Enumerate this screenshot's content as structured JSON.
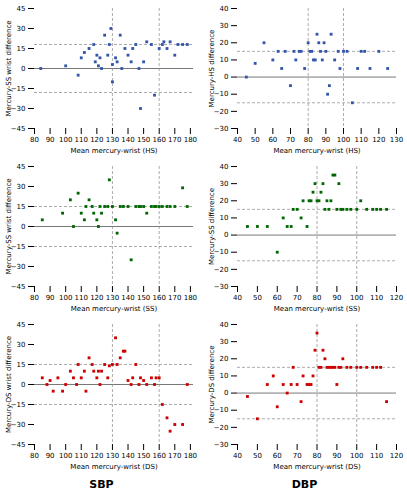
{
  "chart_data": [
    {
      "type": "scatter",
      "marker": "square",
      "color": "#3355aa",
      "xlabel": "Mean mercury-wrist (HS)",
      "ylabel": "Mercury-SS wrist difference",
      "x": [
        84,
        100,
        108,
        110,
        112,
        115,
        118,
        119,
        120,
        121,
        122,
        123,
        125,
        127,
        128,
        129,
        130,
        130,
        132,
        133,
        135,
        136,
        138,
        140,
        142,
        143,
        145,
        147,
        148,
        150,
        152,
        155,
        157,
        160,
        162,
        163,
        165,
        167,
        170,
        172,
        175,
        178
      ],
      "values": [
        0,
        2,
        -5,
        8,
        12,
        15,
        18,
        5,
        10,
        2,
        8,
        0,
        25,
        10,
        18,
        30,
        3,
        -10,
        8,
        5,
        25,
        0,
        15,
        10,
        5,
        15,
        18,
        0,
        -30,
        5,
        20,
        18,
        -20,
        15,
        18,
        20,
        15,
        20,
        10,
        18,
        18,
        18
      ],
      "mean_line": 0,
      "upper_loa": 18,
      "lower_loa": -18,
      "upper_vline": 130,
      "lower_vline": 160,
      "xlim": [
        80,
        182
      ],
      "ylim": [
        -45,
        45
      ],
      "xticks": [
        80,
        90,
        100,
        110,
        120,
        130,
        140,
        150,
        160,
        170,
        180
      ],
      "yticks": [
        -45,
        -30,
        -15,
        0,
        15,
        30,
        45
      ]
    },
    {
      "type": "scatter",
      "marker": "square",
      "color": "#3355aa",
      "xlabel": "Mean mercury-wrist (HS)",
      "ylabel": "Mercury-HS difference",
      "x": [
        45,
        50,
        55,
        60,
        63,
        65,
        67,
        70,
        72,
        73,
        75,
        76,
        78,
        80,
        81,
        82,
        83,
        84,
        85,
        86,
        87,
        88,
        89,
        90,
        91,
        92,
        93,
        95,
        97,
        98,
        100,
        102,
        105,
        108,
        110,
        112,
        115,
        120,
        125
      ],
      "values": [
        0,
        8,
        20,
        10,
        15,
        5,
        15,
        -5,
        15,
        10,
        15,
        15,
        5,
        20,
        15,
        15,
        10,
        10,
        25,
        20,
        15,
        10,
        20,
        15,
        -10,
        -5,
        25,
        10,
        15,
        5,
        15,
        15,
        -15,
        5,
        15,
        15,
        5,
        15,
        5
      ],
      "mean_line": 0,
      "upper_loa": 15,
      "lower_loa": -15,
      "upper_vline": 80,
      "lower_vline": 100,
      "xlim": [
        40,
        130
      ],
      "ylim": [
        -30,
        40
      ],
      "xticks": [
        40,
        50,
        60,
        70,
        80,
        90,
        100,
        110,
        120,
        130
      ],
      "yticks": [
        -30,
        -20,
        -10,
        0,
        10,
        20,
        30,
        40
      ]
    },
    {
      "type": "scatter",
      "marker": "square",
      "color": "#006600",
      "xlabel": "Mean mercury-wrist (SS)",
      "ylabel": "Mercury-SS wrist difference",
      "x": [
        85,
        98,
        103,
        105,
        108,
        110,
        112,
        113,
        115,
        117,
        118,
        120,
        121,
        122,
        123,
        125,
        127,
        128,
        130,
        132,
        133,
        135,
        137,
        140,
        142,
        145,
        147,
        148,
        150,
        152,
        155,
        157,
        158,
        160,
        162,
        165,
        167,
        170,
        175,
        178
      ],
      "values": [
        5,
        10,
        20,
        0,
        25,
        10,
        5,
        15,
        20,
        15,
        10,
        5,
        0,
        15,
        10,
        15,
        15,
        35,
        15,
        5,
        -5,
        15,
        15,
        15,
        -25,
        15,
        15,
        15,
        15,
        10,
        15,
        15,
        15,
        15,
        15,
        15,
        15,
        15,
        29,
        15
      ],
      "mean_line": 0,
      "upper_loa": 15,
      "lower_loa": -15,
      "upper_vline": 130,
      "lower_vline": 160,
      "xlim": [
        80,
        182
      ],
      "ylim": [
        -45,
        45
      ],
      "xticks": [
        80,
        90,
        100,
        110,
        120,
        130,
        140,
        150,
        160,
        170,
        180
      ],
      "yticks": [
        -45,
        -30,
        -15,
        0,
        15,
        30,
        45
      ]
    },
    {
      "type": "scatter",
      "marker": "square",
      "color": "#006600",
      "xlabel": "Mean mercury-wrist (SS)",
      "ylabel": "Mercury-SS difference",
      "x": [
        45,
        50,
        55,
        60,
        63,
        65,
        67,
        68,
        70,
        72,
        73,
        75,
        76,
        77,
        78,
        79,
        80,
        81,
        82,
        83,
        84,
        85,
        86,
        87,
        88,
        89,
        90,
        91,
        92,
        93,
        95,
        97,
        100,
        102,
        105,
        108,
        110,
        112,
        115
      ],
      "values": [
        5,
        5,
        5,
        -10,
        10,
        5,
        5,
        15,
        15,
        10,
        20,
        5,
        20,
        20,
        25,
        30,
        20,
        20,
        25,
        30,
        15,
        20,
        15,
        20,
        35,
        35,
        15,
        30,
        15,
        15,
        15,
        15,
        15,
        20,
        15,
        15,
        15,
        15,
        15
      ],
      "mean_line": 0,
      "upper_loa": 15,
      "lower_loa": -15,
      "upper_vline": 80,
      "lower_vline": 100,
      "xlim": [
        40,
        120
      ],
      "ylim": [
        -30,
        40
      ],
      "xticks": [
        40,
        50,
        60,
        70,
        80,
        90,
        100,
        110,
        120
      ],
      "yticks": [
        -30,
        -20,
        -10,
        0,
        10,
        20,
        30,
        40
      ]
    },
    {
      "type": "scatter",
      "marker": "square",
      "color": "#cc0000",
      "xlabel": "Mean mercury-wrist (DS)",
      "ylabel": "Mercury-DS wrist difference",
      "x": [
        85,
        88,
        90,
        92,
        95,
        98,
        100,
        103,
        105,
        107,
        108,
        110,
        112,
        113,
        115,
        117,
        118,
        120,
        121,
        122,
        123,
        125,
        127,
        128,
        130,
        132,
        133,
        135,
        137,
        138,
        140,
        142,
        143,
        145,
        147,
        148,
        150,
        152,
        155,
        157,
        158,
        160,
        162,
        165,
        167,
        170,
        175,
        178
      ],
      "values": [
        5,
        0,
        3,
        -5,
        5,
        -5,
        0,
        10,
        5,
        0,
        15,
        5,
        10,
        -5,
        20,
        15,
        10,
        5,
        10,
        0,
        10,
        15,
        5,
        14,
        15,
        35,
        15,
        20,
        25,
        25,
        3,
        0,
        5,
        15,
        0,
        5,
        3,
        0,
        5,
        0,
        5,
        5,
        -15,
        -25,
        -35,
        -30,
        -30,
        0
      ],
      "mean_line": 0,
      "upper_loa": 15,
      "lower_loa": -15,
      "upper_vline": 130,
      "lower_vline": 160,
      "xlim": [
        80,
        182
      ],
      "ylim": [
        -45,
        45
      ],
      "xticks": [
        80,
        90,
        100,
        110,
        120,
        130,
        140,
        150,
        160,
        170,
        180
      ],
      "yticks": [
        -45,
        -30,
        -15,
        0,
        15,
        30,
        45
      ]
    },
    {
      "type": "scatter",
      "marker": "square",
      "color": "#cc0000",
      "xlabel": "Mean mercury-wrist (DS)",
      "ylabel": "Mercury-DS difference",
      "x": [
        45,
        50,
        55,
        58,
        60,
        63,
        65,
        67,
        68,
        70,
        72,
        73,
        75,
        76,
        77,
        78,
        79,
        80,
        81,
        82,
        83,
        84,
        85,
        86,
        87,
        88,
        89,
        90,
        91,
        92,
        93,
        95,
        97,
        100,
        102,
        105,
        108,
        110,
        112,
        115
      ],
      "values": [
        -2,
        -15,
        5,
        10,
        -8,
        5,
        0,
        5,
        15,
        5,
        -5,
        10,
        5,
        5,
        5,
        10,
        25,
        35,
        15,
        15,
        25,
        20,
        15,
        15,
        15,
        15,
        15,
        5,
        15,
        15,
        20,
        15,
        15,
        15,
        15,
        15,
        15,
        15,
        15,
        -5
      ],
      "mean_line": 0,
      "upper_loa": 15,
      "lower_loa": -15,
      "upper_vline": 80,
      "lower_vline": 100,
      "xlim": [
        40,
        120
      ],
      "ylim": [
        -30,
        40
      ],
      "xticks": [
        40,
        50,
        60,
        70,
        80,
        90,
        100,
        110,
        120
      ],
      "yticks": [
        -30,
        -20,
        -10,
        0,
        10,
        20,
        30,
        40
      ]
    }
  ],
  "column_titles": [
    "SBP",
    "DBP"
  ]
}
